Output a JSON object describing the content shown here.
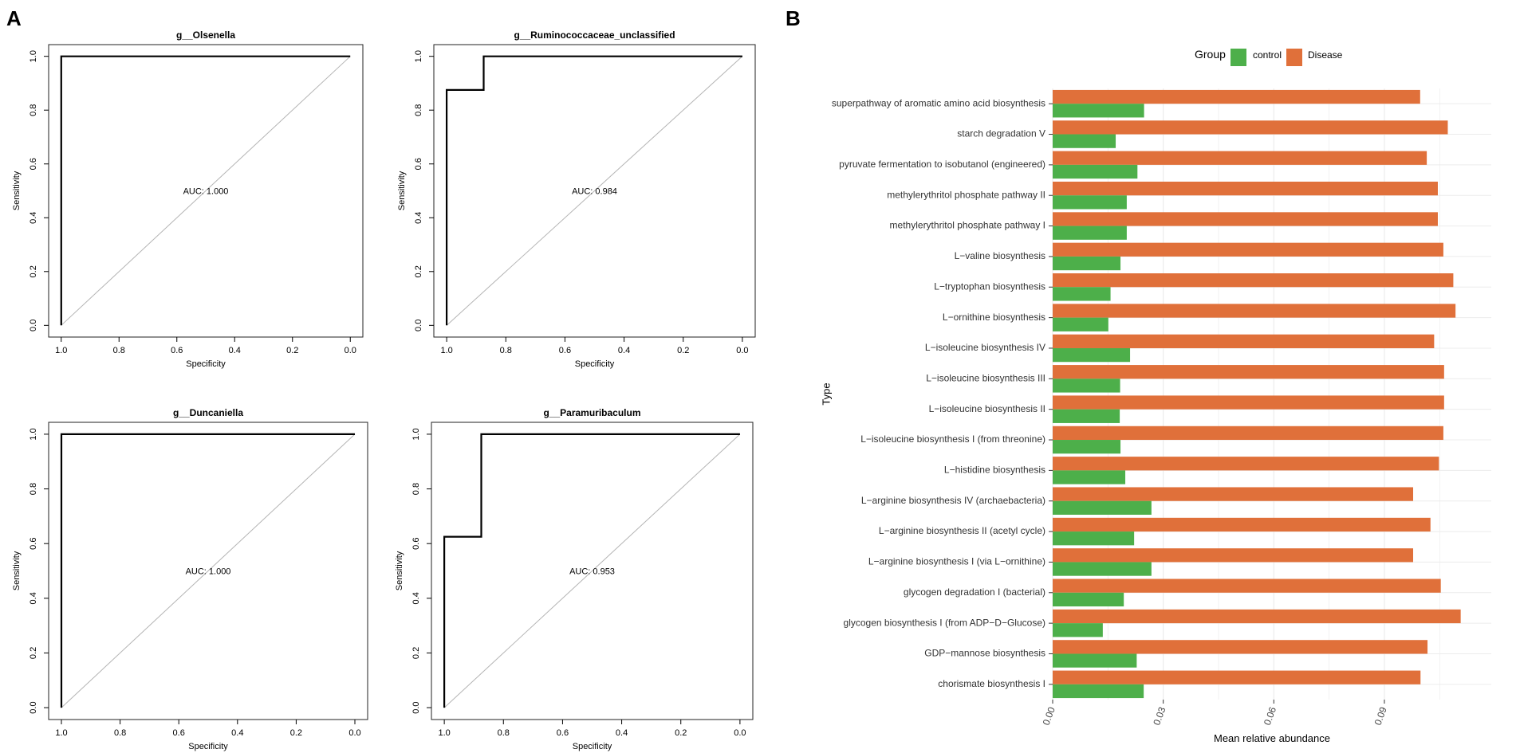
{
  "panel_labels": {
    "a": "A",
    "b": "B"
  },
  "colors": {
    "control": "#4daf4a",
    "disease": "#e0703a",
    "axis": "#000000",
    "diagonal": "#b4b4b4",
    "grid": "#ececec"
  },
  "chart_data": [
    {
      "type": "line",
      "panel": "A",
      "title": "g__Olsenella",
      "xlabel": "Specificity",
      "ylabel": "Sensitivity",
      "xlim": [
        1.0,
        0.0
      ],
      "ylim": [
        0.0,
        1.0
      ],
      "xticks": [
        "1.0",
        "0.8",
        "0.6",
        "0.4",
        "0.2",
        "0.0"
      ],
      "yticks": [
        "0.0",
        "0.2",
        "0.4",
        "0.6",
        "0.8",
        "1.0"
      ],
      "roc": {
        "specificity": [
          1.0,
          1.0,
          0.0
        ],
        "sensitivity": [
          0.0,
          1.0,
          1.0
        ]
      },
      "annotation": "AUC: 1.000"
    },
    {
      "type": "line",
      "panel": "A",
      "title": "g__Ruminococcaceae_unclassified",
      "xlabel": "Specificity",
      "ylabel": "Sensitivity",
      "xlim": [
        1.0,
        0.0
      ],
      "ylim": [
        0.0,
        1.0
      ],
      "xticks": [
        "1.0",
        "0.8",
        "0.6",
        "0.4",
        "0.2",
        "0.0"
      ],
      "yticks": [
        "0.0",
        "0.2",
        "0.4",
        "0.6",
        "0.8",
        "1.0"
      ],
      "roc": {
        "specificity": [
          1.0,
          1.0,
          0.875,
          0.875,
          0.0
        ],
        "sensitivity": [
          0.0,
          0.875,
          0.875,
          1.0,
          1.0
        ]
      },
      "annotation": "AUC: 0.984"
    },
    {
      "type": "line",
      "panel": "A",
      "title": "g__Duncaniella",
      "xlabel": "Specificity",
      "ylabel": "Sensitivity",
      "xlim": [
        1.0,
        0.0
      ],
      "ylim": [
        0.0,
        1.0
      ],
      "xticks": [
        "1.0",
        "0.8",
        "0.6",
        "0.4",
        "0.2",
        "0.0"
      ],
      "yticks": [
        "0.0",
        "0.2",
        "0.4",
        "0.6",
        "0.8",
        "1.0"
      ],
      "roc": {
        "specificity": [
          1.0,
          1.0,
          0.0
        ],
        "sensitivity": [
          0.0,
          1.0,
          1.0
        ]
      },
      "annotation": "AUC: 1.000"
    },
    {
      "type": "line",
      "panel": "A",
      "title": "g__Paramuribaculum",
      "xlabel": "Specificity",
      "ylabel": "Sensitivity",
      "xlim": [
        1.0,
        0.0
      ],
      "ylim": [
        0.0,
        1.0
      ],
      "xticks": [
        "1.0",
        "0.8",
        "0.6",
        "0.4",
        "0.2",
        "0.0"
      ],
      "yticks": [
        "0.0",
        "0.2",
        "0.4",
        "0.6",
        "0.8",
        "1.0"
      ],
      "roc": {
        "specificity": [
          1.0,
          1.0,
          0.875,
          0.875,
          0.0
        ],
        "sensitivity": [
          0.0,
          0.625,
          0.625,
          1.0,
          1.0
        ]
      },
      "annotation": "AUC: 0.953"
    },
    {
      "type": "bar",
      "panel": "B",
      "orientation": "horizontal",
      "xlabel": "Mean relative abundance",
      "ylabel": "Type",
      "xlim": [
        0,
        0.119
      ],
      "xticks": [
        0.0,
        0.03,
        0.06,
        0.09
      ],
      "xtick_labels": [
        "0.00",
        "0.03",
        "0.06",
        "0.09"
      ],
      "legend": {
        "title": "Group",
        "position": "top",
        "entries": [
          "control",
          "Disease"
        ]
      },
      "categories": [
        "superpathway of aromatic amino acid biosynthesis",
        "starch degradation V",
        "pyruvate fermentation to isobutanol (engineered)",
        "methylerythritol phosphate pathway II",
        "methylerythritol phosphate pathway I",
        "L−valine biosynthesis",
        "L−tryptophan biosynthesis",
        "L−ornithine biosynthesis",
        "L−isoleucine biosynthesis IV",
        "L−isoleucine biosynthesis III",
        "L−isoleucine biosynthesis II",
        "L−isoleucine biosynthesis I (from threonine)",
        "L−histidine biosynthesis",
        "L−arginine biosynthesis IV (archaebacteria)",
        "L−arginine biosynthesis II (acetyl cycle)",
        "L−arginine biosynthesis I (via L−ornithine)",
        "glycogen degradation I (bacterial)",
        "glycogen biosynthesis I (from ADP−D−Glucose)",
        "GDP−mannose biosynthesis",
        "chorismate biosynthesis I"
      ],
      "series": [
        {
          "name": "Disease",
          "values": [
            0.0997,
            0.1072,
            0.1015,
            0.1045,
            0.1045,
            0.106,
            0.1087,
            0.1093,
            0.1035,
            0.1062,
            0.1062,
            0.106,
            0.1048,
            0.0978,
            0.1025,
            0.0978,
            0.1053,
            0.1107,
            0.1017,
            0.0998
          ]
        },
        {
          "name": "control",
          "values": [
            0.0248,
            0.0171,
            0.023,
            0.0201,
            0.0201,
            0.0184,
            0.0157,
            0.0151,
            0.021,
            0.0183,
            0.0182,
            0.0184,
            0.0197,
            0.0268,
            0.0221,
            0.0268,
            0.0193,
            0.0136,
            0.0228,
            0.0247
          ]
        }
      ]
    }
  ]
}
